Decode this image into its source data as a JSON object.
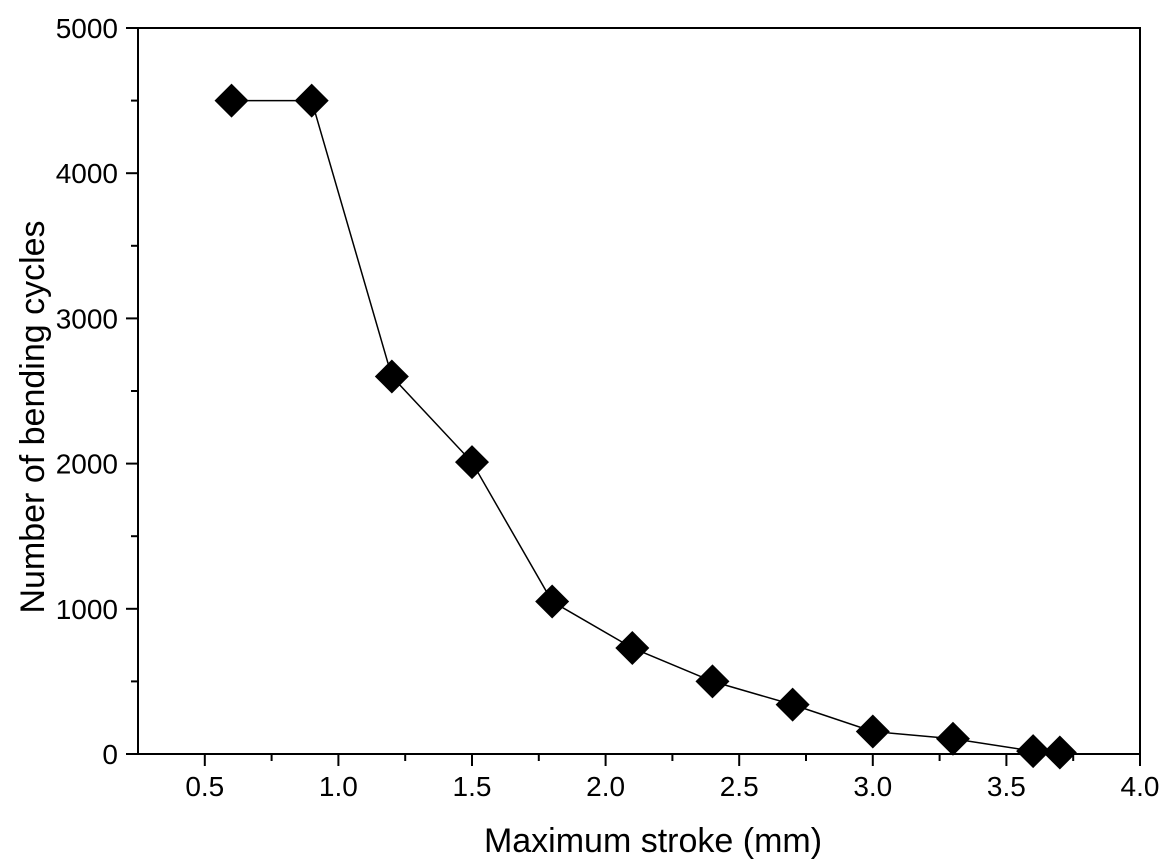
{
  "chart_data": {
    "type": "line",
    "title": "",
    "xlabel": "Maximum stroke (mm)",
    "ylabel": "Number of bending cycles",
    "xlim": [
      0.25,
      4.0
    ],
    "ylim": [
      0,
      5000
    ],
    "x_ticks": [
      "0.5",
      "1.0",
      "1.5",
      "2.0",
      "2.5",
      "3.0",
      "3.5",
      "4.0"
    ],
    "y_ticks": [
      "0",
      "1000",
      "2000",
      "3000",
      "4000",
      "5000"
    ],
    "grid": false,
    "legend": "none",
    "marker": "diamond",
    "colors": {
      "marker": "#000000",
      "line": "#000000",
      "axes": "#000000",
      "background": "#ffffff"
    },
    "series": [
      {
        "x": [
          0.6,
          0.9,
          1.2,
          1.5,
          1.8,
          2.1,
          2.4,
          2.7,
          3.0,
          3.3,
          3.6,
          3.7
        ],
        "y": [
          4500,
          4500,
          2600,
          2010,
          1050,
          730,
          500,
          340,
          155,
          105,
          20,
          10
        ]
      }
    ]
  }
}
